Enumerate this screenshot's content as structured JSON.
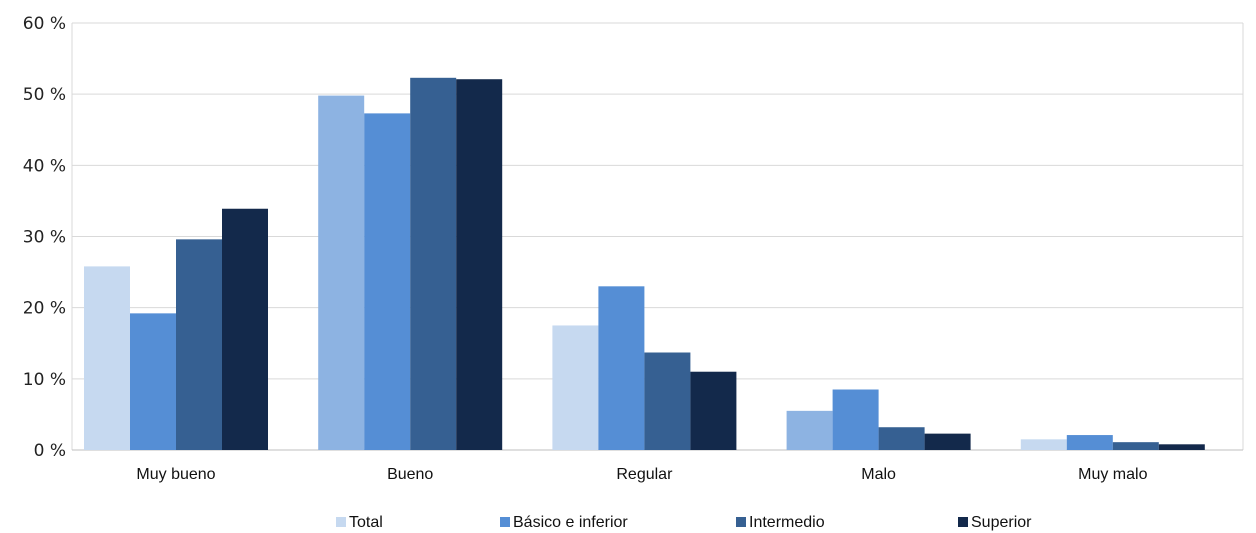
{
  "chart_data": {
    "type": "bar",
    "categories": [
      "Muy bueno",
      "Bueno",
      "Regular",
      "Malo",
      "Muy malo"
    ],
    "series": [
      {
        "name": "Total",
        "values": [
          25.8,
          49.8,
          17.5,
          5.5,
          1.5
        ],
        "color": "#c6d9f0"
      },
      {
        "name": "Básico e inferior",
        "values": [
          19.2,
          47.3,
          23.0,
          8.5,
          2.1
        ],
        "color": "#558ed5"
      },
      {
        "name": "Intermedio",
        "values": [
          29.6,
          52.3,
          13.7,
          3.2,
          1.1
        ],
        "color": "#366092"
      },
      {
        "name": "Superior",
        "values": [
          33.9,
          52.1,
          11.0,
          2.3,
          0.8
        ],
        "color": "#13294b"
      }
    ],
    "bar_color_overrides": {
      "Bueno": {
        "Total": "#8db3e2"
      },
      "Malo": {
        "Total": "#8db3e2"
      }
    },
    "yticks": [
      "0 %",
      "10 %",
      "20 %",
      "30 %",
      "40 %",
      "50 %",
      "60 %"
    ],
    "ylim": [
      0,
      60
    ],
    "grid": true,
    "legend_position": "bottom",
    "title": "",
    "xlabel": "",
    "ylabel": ""
  }
}
